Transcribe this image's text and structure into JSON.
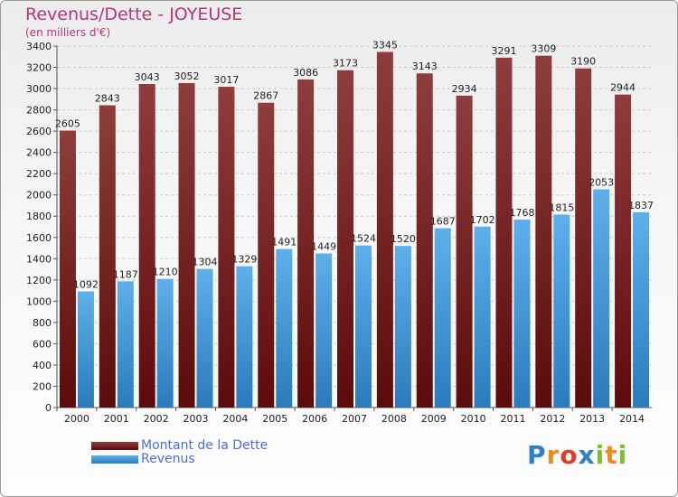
{
  "header": {
    "title": "Revenus/Dette - JOYEUSE",
    "subtitle": "(en milliers d'€)"
  },
  "colors": {
    "dette_dark": "#5c0a0a",
    "dette_light": "#8e3c3c",
    "revenus_dark": "#2a7bbd",
    "revenus_light": "#5db0ea",
    "title": "#b3367a",
    "legend_text": "#4d6fd6"
  },
  "chart_data": {
    "type": "bar",
    "title": "Revenus/Dette - JOYEUSE",
    "subtitle": "(en milliers d'€)",
    "categories": [
      "2000",
      "2001",
      "2002",
      "2003",
      "2004",
      "2005",
      "2006",
      "2007",
      "2008",
      "2009",
      "2010",
      "2011",
      "2012",
      "2013",
      "2014"
    ],
    "series": [
      {
        "name": "Montant de la Dette",
        "values": [
          2605,
          2843,
          3043,
          3052,
          3017,
          2867,
          3086,
          3173,
          3345,
          3143,
          2934,
          3291,
          3309,
          3190,
          2944
        ]
      },
      {
        "name": "Revenus",
        "values": [
          1092,
          1187,
          1210,
          1304,
          1329,
          1491,
          1449,
          1524,
          1520,
          1687,
          1702,
          1768,
          1815,
          2053,
          1837
        ]
      }
    ],
    "ylim": [
      0,
      3400
    ],
    "yticks": [
      0,
      200,
      400,
      600,
      800,
      1000,
      1200,
      1400,
      1600,
      1800,
      2000,
      2200,
      2400,
      2600,
      2800,
      3000,
      3200,
      3400
    ],
    "grid": true,
    "legend_position": "bottom-left"
  },
  "legend": {
    "items": [
      {
        "label": "Montant de la Dette"
      },
      {
        "label": "Revenus"
      }
    ]
  },
  "brand": {
    "letters": [
      {
        "char": "P",
        "color": "#2e7fc9"
      },
      {
        "char": "r",
        "color": "#f08a1c"
      },
      {
        "char": "o",
        "color": "#e23b2a"
      },
      {
        "char": "x",
        "color": "#2e7fc9"
      },
      {
        "char": "i",
        "color": "#7fbf2a"
      },
      {
        "char": "t",
        "color": "#f08a1c"
      },
      {
        "char": "i",
        "color": "#7fbf2a"
      }
    ]
  }
}
